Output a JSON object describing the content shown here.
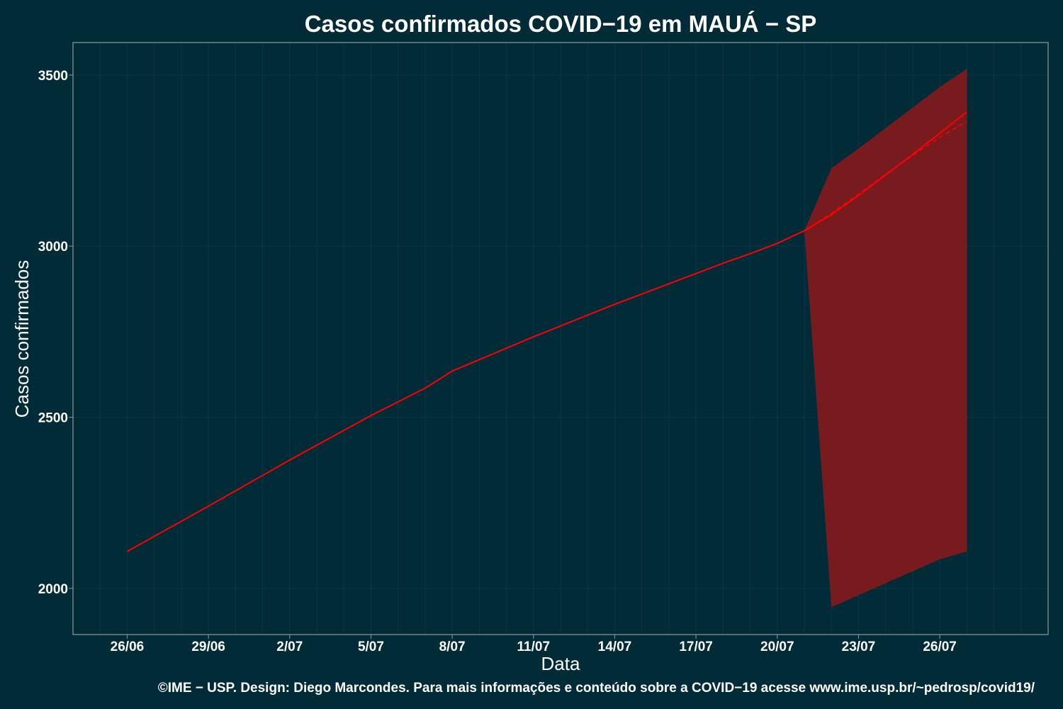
{
  "chart_data": {
    "type": "line",
    "title": "Casos confirmados COVID−19 em MAUÁ − SP",
    "xlabel": "Data",
    "ylabel": "Casos confirmados",
    "caption": "©IME − USP. Design: Diego Marcondes. Para mais informações e conteúdo sobre a COVID−19 acesse www.ime.usp.br/~pedrosp/covid19/",
    "x_start": "2020-06-24",
    "x_end": "2020-07-30",
    "xticks": [
      "26/06",
      "29/06",
      "2/07",
      "5/07",
      "8/07",
      "11/07",
      "14/07",
      "17/07",
      "20/07",
      "23/07",
      "26/07"
    ],
    "ylim": [
      1865,
      3595
    ],
    "yticks": [
      2000,
      2500,
      3000,
      3500
    ],
    "grid": true,
    "series": [
      {
        "kind": "observed",
        "color": "#ff0000",
        "style": "solid",
        "x": [
          "2020-06-26",
          "2020-06-29",
          "2020-07-01",
          "2020-07-02",
          "2020-07-05",
          "2020-07-07",
          "2020-07-08",
          "2020-07-11",
          "2020-07-14",
          "2020-07-17",
          "2020-07-18",
          "2020-07-19",
          "2020-07-20",
          "2020-07-21"
        ],
        "values": [
          2108,
          2240,
          2330,
          2375,
          2505,
          2585,
          2635,
          2735,
          2830,
          2920,
          2950,
          2978,
          3008,
          3045
        ]
      },
      {
        "kind": "forecast",
        "color": "#ff0000",
        "style": "solid",
        "x": [
          "2020-07-21",
          "2020-07-22",
          "2020-07-23",
          "2020-07-24",
          "2020-07-25",
          "2020-07-26",
          "2020-07-27"
        ],
        "values": [
          3045,
          3092,
          3148,
          3208,
          3268,
          3330,
          3392
        ]
      },
      {
        "kind": "forecast-alt",
        "color": "#ff0000",
        "style": "dashed",
        "x": [
          "2020-07-21",
          "2020-07-22",
          "2020-07-23",
          "2020-07-24",
          "2020-07-25",
          "2020-07-26",
          "2020-07-27"
        ],
        "values": [
          3045,
          3096,
          3152,
          3210,
          3265,
          3318,
          3365
        ]
      }
    ],
    "band": {
      "color": "#7d1a1e",
      "x": [
        "2020-07-21",
        "2020-07-22",
        "2020-07-23",
        "2020-07-24",
        "2020-07-25",
        "2020-07-26",
        "2020-07-27"
      ],
      "upper": [
        3045,
        3228,
        3285,
        3345,
        3405,
        3465,
        3518
      ],
      "lower": [
        3045,
        1945,
        1980,
        2015,
        2050,
        2085,
        2108
      ]
    }
  },
  "colors": {
    "background": "#022b38",
    "panel_border": "#8a9a9c",
    "gridline": "#1f4450",
    "text": "#ffffff"
  }
}
